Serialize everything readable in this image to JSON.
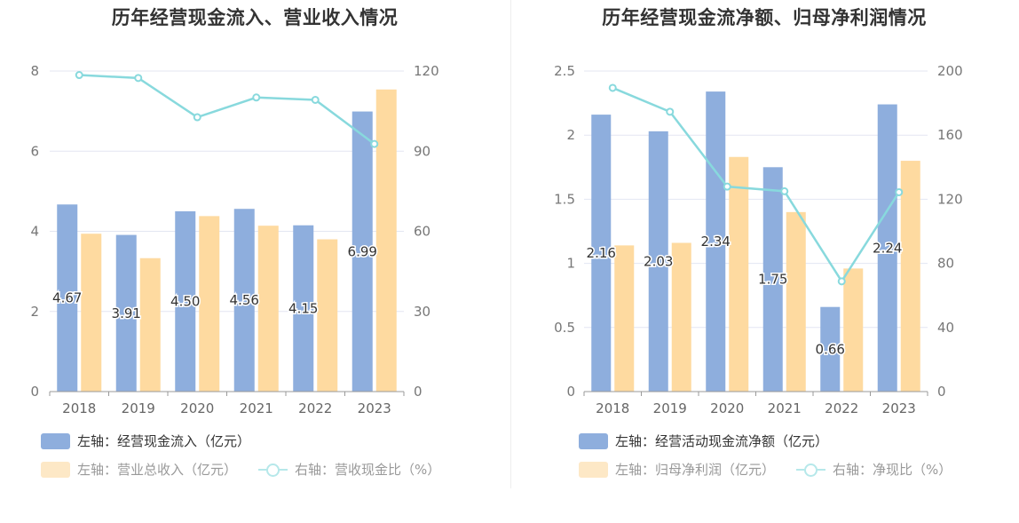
{
  "chart_data": [
    {
      "type": "bar+line",
      "title": "历年经营现金流入、营业收入情况",
      "categories": [
        "2018",
        "2019",
        "2020",
        "2021",
        "2022",
        "2023"
      ],
      "left_axis": {
        "min": 0,
        "max": 8,
        "ticks": [
          "0",
          "2",
          "4",
          "6",
          "8"
        ]
      },
      "right_axis": {
        "min": 0,
        "max": 120,
        "ticks": [
          "0",
          "30",
          "60",
          "90",
          "120"
        ]
      },
      "series": [
        {
          "name": "左轴：经营现金流入（亿元）",
          "type": "bar",
          "axis": "left",
          "color": "#8eaedd",
          "values": [
            4.67,
            3.91,
            4.5,
            4.56,
            4.15,
            6.99
          ],
          "labels": [
            "4.67",
            "3.91",
            "4.50",
            "4.56",
            "4.15",
            "6.99"
          ]
        },
        {
          "name": "左轴：营业总收入（亿元）",
          "type": "bar",
          "axis": "left",
          "color": "#fedaa0",
          "values": [
            3.94,
            3.33,
            4.38,
            4.14,
            3.8,
            7.54
          ]
        },
        {
          "name": "右轴：营收现金比（%）",
          "type": "line",
          "axis": "right",
          "color": "#88d9dd",
          "values": [
            118.5,
            117.4,
            102.7,
            110.1,
            109.2,
            92.7
          ]
        }
      ],
      "legend": [
        "左轴：经营现金流入（亿元）",
        "左轴：营业总收入（亿元）",
        "右轴：营收现金比（%）"
      ]
    },
    {
      "type": "bar+line",
      "title": "历年经营现金流净额、归母净利润情况",
      "categories": [
        "2018",
        "2019",
        "2020",
        "2021",
        "2022",
        "2023"
      ],
      "left_axis": {
        "min": 0,
        "max": 2.5,
        "ticks": [
          "0",
          "0.5",
          "1",
          "1.5",
          "2",
          "2.5"
        ]
      },
      "right_axis": {
        "min": 0,
        "max": 200,
        "ticks": [
          "0",
          "40",
          "80",
          "120",
          "160",
          "200"
        ]
      },
      "series": [
        {
          "name": "左轴：经营活动现金流净额（亿元）",
          "type": "bar",
          "axis": "left",
          "color": "#8eaedd",
          "values": [
            2.16,
            2.03,
            2.34,
            1.75,
            0.66,
            2.24
          ],
          "labels": [
            "2.16",
            "2.03",
            "2.34",
            "1.75",
            "0.66",
            "2.24"
          ]
        },
        {
          "name": "左轴：归母净利润（亿元）",
          "type": "bar",
          "axis": "left",
          "color": "#fedaa0",
          "values": [
            1.14,
            1.16,
            1.83,
            1.4,
            0.96,
            1.8
          ]
        },
        {
          "name": "右轴：净现比（%）",
          "type": "line",
          "axis": "right",
          "color": "#88d9dd",
          "values": [
            189.5,
            174.6,
            127.9,
            125.0,
            68.8,
            124.4
          ]
        }
      ],
      "legend": [
        "左轴：经营活动现金流净额（亿元）",
        "左轴：归母净利润（亿元）",
        "右轴：净现比（%）"
      ]
    }
  ]
}
